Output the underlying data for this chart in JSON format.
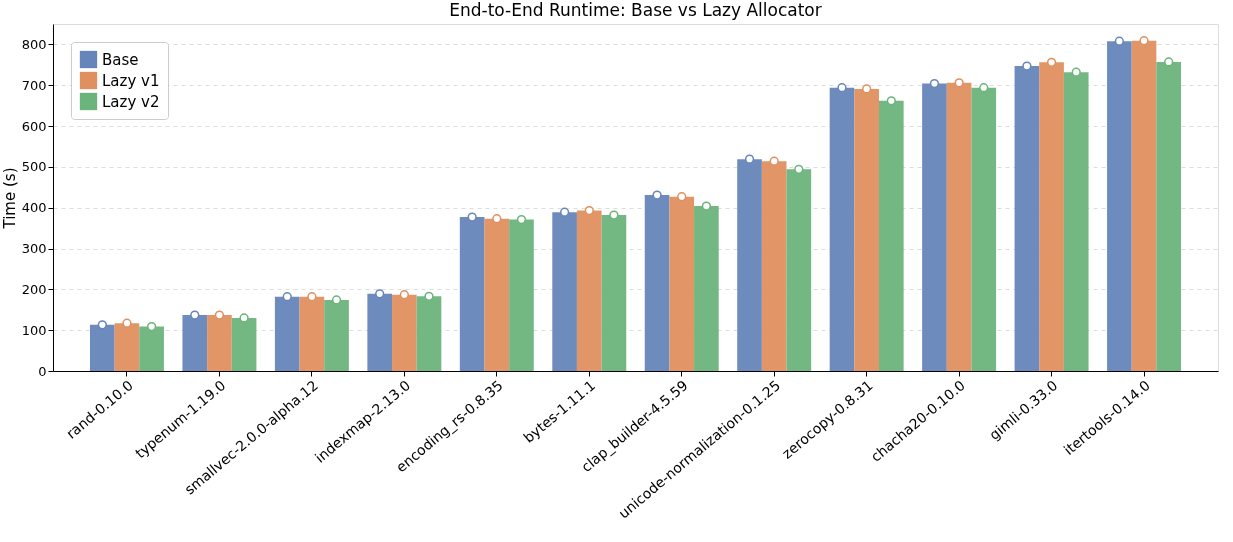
{
  "chart_data": {
    "type": "bar",
    "title": "End-to-End Runtime: Base vs Lazy Allocator",
    "ylabel": "Time (s)",
    "categories": [
      "rand-0.10.0",
      "typenum-1.19.0",
      "smallvec-2.0.0-alpha.12",
      "indexmap-2.13.0",
      "encoding_rs-0.8.35",
      "bytes-1.11.1",
      "clap_builder-4.5.59",
      "unicode-normalization-0.1.25",
      "zerocopy-0.8.31",
      "chacha20-0.10.0",
      "gimli-0.33.0",
      "itertools-0.14.0"
    ],
    "series": [
      {
        "name": "Base",
        "color": "#6685bb",
        "values": [
          113,
          137,
          182,
          189,
          377,
          389,
          431,
          519,
          694,
          704,
          747,
          808
        ]
      },
      {
        "name": "Lazy v1",
        "color": "#e0905f",
        "values": [
          117,
          137,
          182,
          187,
          373,
          393,
          427,
          514,
          691,
          706,
          756,
          809
        ]
      },
      {
        "name": "Lazy v2",
        "color": "#6bb47c",
        "values": [
          109,
          130,
          174,
          183,
          371,
          382,
          404,
          494,
          662,
          694,
          732,
          757
        ]
      },
      {
        "type": "scatter",
        "color": "#ffffff",
        "marker": "circle",
        "x": [
          "rand-0.10.0",
          "typenum-1.19.0",
          "smallvec-2.0.0-alpha.12",
          "indexmap-2.13.0",
          "encoding_rs-0.8.35",
          "bytes-1.11.1",
          "clap_builder-4.5.59",
          "unicode-normalization-0.1.25",
          "zerocopy-0.8.31",
          "chacha20-0.10.0",
          "gimli-0.33.0",
          "itertools-0.14.0"
        ],
        "values": [
          113,
          137,
          182,
          189,
          377,
          389,
          431,
          519,
          694,
          704,
          747,
          808
        ]
      },
      {
        "type": "scatter",
        "color": "#ffffff",
        "marker": "circle",
        "x": [
          "rand-0.10.0",
          "typenum-1.19.0",
          "smallvec-2.0.0-alpha.12",
          "indexmap-2.13.0",
          "encoding_rs-0.8.35",
          "bytes-1.11.1",
          "clap_builder-4.5.59",
          "unicode-normalization-0.1.25",
          "zerocopy-0.8.31",
          "chacha20-0.10.0",
          "gimli-0.33.0",
          "itertools-0.14.0"
        ],
        "values": [
          117,
          137,
          182,
          187,
          373,
          393,
          427,
          514,
          691,
          706,
          756,
          809
        ]
      },
      {
        "type": "scatter",
        "color": "#ffffff",
        "marker": "circle",
        "x": [
          "rand-0.10.0",
          "typenum-1.19.0",
          "smallvec-2.0.0-alpha.12",
          "indexmap-2.13.0",
          "encoding_rs-0.8.35",
          "bytes-1.11.1",
          "clap_builder-4.5.59",
          "unicode-normalization-0.1.25",
          "zerocopy-0.8.31",
          "chacha20-0.10.0",
          "gimli-0.33.0",
          "itertools-0.14.0"
        ],
        "values": [
          109,
          130,
          174,
          183,
          371,
          382,
          404,
          494,
          662,
          694,
          732,
          757
        ]
      }
    ],
    "ylim": [
      0,
      850
    ],
    "yticks": [
      0,
      100,
      200,
      300,
      400,
      500,
      600,
      700,
      800
    ],
    "grid": "y",
    "legend": "top left"
  }
}
